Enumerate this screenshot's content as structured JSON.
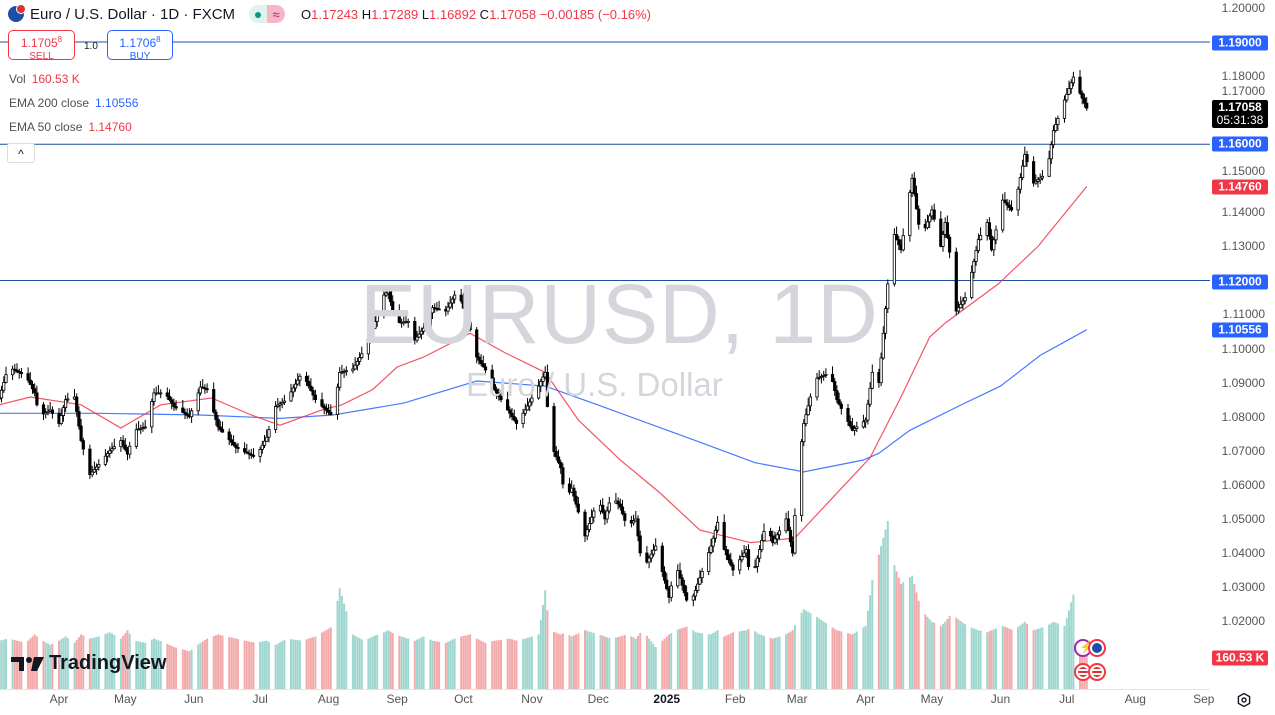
{
  "header": {
    "title": "Euro / U.S. Dollar · 1D · FXCM",
    "market_status_icon": "green-dot",
    "data_icon": "≈",
    "ohlc": {
      "o_label": "O",
      "o": "1.17243",
      "h_label": "H",
      "h": "1.17289",
      "l_label": "L",
      "l": "1.16892",
      "c_label": "C",
      "c": "1.17058",
      "change": "−0.00185 (−0.16%)"
    }
  },
  "trade": {
    "sell_price": "1.1705",
    "sell_sup": "8",
    "sell_label": "SELL",
    "spread": "1.0",
    "buy_price": "1.1706",
    "buy_sup": "8",
    "buy_label": "BUY"
  },
  "legend": {
    "vol_label": "Vol",
    "vol_value": "160.53 K",
    "ema200_label": "EMA 200 close",
    "ema200_value": "1.10556",
    "ema50_label": "EMA 50 close",
    "ema50_value": "1.14760"
  },
  "collapse_icon": "^",
  "watermark": {
    "symbol": "EURUSD, 1D",
    "name": "Euro / U.S. Dollar"
  },
  "logo": "TradingView",
  "colors": {
    "up_volume": "#9fd6cf",
    "down_volume": "#f2aaaa",
    "ema200": "#2962ff",
    "ema50": "#f23645",
    "hline": "#1f4e9c",
    "badge_blue": "#2962ff",
    "badge_red": "#f23645",
    "last_price_bg": "#000000"
  },
  "price_axis": {
    "ticks": [
      "1.20000",
      "1.18000",
      "1.17000",
      "1.15000",
      "1.14000",
      "1.13000",
      "1.11000",
      "1.10000",
      "1.09000",
      "1.08000",
      "1.07000",
      "1.06000",
      "1.05000",
      "1.04000",
      "1.03000",
      "1.02000"
    ],
    "last_price": "1.17058",
    "countdown": "05:31:38",
    "ema50_badge": "1.14760",
    "ema200_badge": "1.10556",
    "hline_badges": [
      "1.19000",
      "1.16000",
      "1.12000"
    ],
    "volume_badge": "160.53 K"
  },
  "time_axis": {
    "labels": [
      {
        "text": "Apr",
        "date": "2024-04-01"
      },
      {
        "text": "May",
        "date": "2024-05-01"
      },
      {
        "text": "Jun",
        "date": "2024-06-01"
      },
      {
        "text": "Jul",
        "date": "2024-07-01"
      },
      {
        "text": "Aug",
        "date": "2024-08-01"
      },
      {
        "text": "Sep",
        "date": "2024-09-01"
      },
      {
        "text": "Oct",
        "date": "2024-10-01"
      },
      {
        "text": "Nov",
        "date": "2024-11-01"
      },
      {
        "text": "Dec",
        "date": "2024-12-01"
      },
      {
        "text": "2025",
        "date": "2025-01-01",
        "year": true
      },
      {
        "text": "Feb",
        "date": "2025-02-01"
      },
      {
        "text": "Mar",
        "date": "2025-03-01"
      },
      {
        "text": "Apr",
        "date": "2025-04-01"
      },
      {
        "text": "May",
        "date": "2025-05-01"
      },
      {
        "text": "Jun",
        "date": "2025-06-01"
      },
      {
        "text": "Jul",
        "date": "2025-07-01"
      },
      {
        "text": "Aug",
        "date": "2025-08-01"
      },
      {
        "text": "Sep",
        "date": "2025-09-01"
      }
    ],
    "settings_icon": "gear-icon"
  },
  "chart_data": {
    "type": "candlestick",
    "symbol": "EURUSD",
    "interval": "1D",
    "ylim": [
      1.015,
      1.2
    ],
    "grid": false,
    "horizontal_lines": [
      1.19,
      1.16,
      1.12
    ],
    "close_path_columns": [
      "date",
      "close",
      "volume_k"
    ],
    "close_path": [
      [
        "2024-03-05",
        1.0855,
        230
      ],
      [
        "2024-03-09",
        1.0946,
        240
      ],
      [
        "2024-03-17",
        1.092,
        220
      ],
      [
        "2024-03-21",
        1.087,
        260
      ],
      [
        "2024-03-23",
        1.08,
        240
      ],
      [
        "2024-03-28",
        1.082,
        210
      ],
      [
        "2024-04-01",
        1.078,
        230
      ],
      [
        "2024-04-04",
        1.085,
        250
      ],
      [
        "2024-04-08",
        1.0858,
        220
      ],
      [
        "2024-04-11",
        1.073,
        260
      ],
      [
        "2024-04-15",
        1.063,
        240
      ],
      [
        "2024-04-19",
        1.066,
        250
      ],
      [
        "2024-04-24",
        1.07,
        270
      ],
      [
        "2024-04-29",
        1.073,
        240
      ],
      [
        "2024-05-02",
        1.069,
        280
      ],
      [
        "2024-05-05",
        1.076,
        230
      ],
      [
        "2024-05-10",
        1.077,
        220
      ],
      [
        "2024-05-14",
        1.087,
        240
      ],
      [
        "2024-05-19",
        1.087,
        220
      ],
      [
        "2024-05-23",
        1.083,
        200
      ],
      [
        "2024-05-30",
        1.08,
        180
      ],
      [
        "2024-06-04",
        1.0887,
        220
      ],
      [
        "2024-06-07",
        1.088,
        240
      ],
      [
        "2024-06-12",
        1.077,
        260
      ],
      [
        "2024-06-20",
        1.071,
        240
      ],
      [
        "2024-06-29",
        1.068,
        220
      ],
      [
        "2024-07-04",
        1.074,
        230
      ],
      [
        "2024-07-08",
        1.083,
        210
      ],
      [
        "2024-07-13",
        1.085,
        240
      ],
      [
        "2024-07-20",
        1.093,
        230
      ],
      [
        "2024-07-26",
        1.085,
        250
      ],
      [
        "2024-08-03",
        1.08,
        300
      ],
      [
        "2024-08-06",
        1.093,
        480
      ],
      [
        "2024-08-12",
        1.094,
        260
      ],
      [
        "2024-08-17",
        1.0996,
        230
      ],
      [
        "2024-08-21",
        1.106,
        250
      ],
      [
        "2024-08-26",
        1.1157,
        270
      ],
      [
        "2024-08-28",
        1.117,
        280
      ],
      [
        "2024-08-31",
        1.1075,
        260
      ],
      [
        "2024-09-06",
        1.108,
        240
      ],
      [
        "2024-09-09",
        1.1025,
        230
      ],
      [
        "2024-09-13",
        1.106,
        250
      ],
      [
        "2024-09-17",
        1.112,
        230
      ],
      [
        "2024-09-23",
        1.111,
        220
      ],
      [
        "2024-09-27",
        1.1157,
        240
      ],
      [
        "2024-09-30",
        1.114,
        250
      ],
      [
        "2024-10-04",
        1.1055,
        260
      ],
      [
        "2024-10-07",
        1.0975,
        240
      ],
      [
        "2024-10-11",
        1.0937,
        220
      ],
      [
        "2024-10-15",
        1.088,
        230
      ],
      [
        "2024-10-22",
        1.081,
        240
      ],
      [
        "2024-10-25",
        1.078,
        230
      ],
      [
        "2024-10-29",
        1.082,
        240
      ],
      [
        "2024-11-04",
        1.089,
        260
      ],
      [
        "2024-11-07",
        1.093,
        470
      ],
      [
        "2024-11-09",
        1.073,
        280
      ],
      [
        "2024-11-14",
        1.065,
        260
      ],
      [
        "2024-11-16",
        1.0555,
        270
      ],
      [
        "2024-11-19",
        1.059,
        250
      ],
      [
        "2024-11-25",
        1.045,
        280
      ],
      [
        "2024-12-01",
        1.056,
        260
      ],
      [
        "2024-12-04",
        1.05,
        250
      ],
      [
        "2024-12-07",
        1.057,
        240
      ],
      [
        "2024-12-11",
        1.0535,
        250
      ],
      [
        "2024-12-14",
        1.0476,
        260
      ],
      [
        "2024-12-18",
        1.05,
        240
      ],
      [
        "2024-12-21",
        1.035,
        280
      ],
      [
        "2024-12-27",
        1.042,
        200
      ],
      [
        "2025-01-02",
        1.027,
        260
      ],
      [
        "2025-01-05",
        1.037,
        280
      ],
      [
        "2025-01-11",
        1.024,
        300
      ],
      [
        "2025-01-14",
        1.029,
        270
      ],
      [
        "2025-01-21",
        1.042,
        260
      ],
      [
        "2025-01-24",
        1.049,
        280
      ],
      [
        "2025-01-27",
        1.041,
        250
      ],
      [
        "2025-01-31",
        1.035,
        270
      ],
      [
        "2025-02-06",
        1.041,
        280
      ],
      [
        "2025-02-08",
        1.031,
        290
      ],
      [
        "2025-02-12",
        1.041,
        260
      ],
      [
        "2025-02-15",
        1.049,
        250
      ],
      [
        "2025-02-18",
        1.043,
        240
      ],
      [
        "2025-02-24",
        1.05,
        260
      ],
      [
        "2025-02-27",
        1.04,
        280
      ],
      [
        "2025-03-01",
        1.062,
        330
      ],
      [
        "2025-03-04",
        1.078,
        380
      ],
      [
        "2025-03-09",
        1.091,
        350
      ],
      [
        "2025-03-16",
        1.093,
        300
      ],
      [
        "2025-03-19",
        1.085,
        280
      ],
      [
        "2025-03-26",
        1.076,
        260
      ],
      [
        "2025-04-01",
        1.079,
        300
      ],
      [
        "2025-04-04",
        1.093,
        520
      ],
      [
        "2025-04-07",
        1.09,
        640
      ],
      [
        "2025-04-11",
        1.119,
        800
      ],
      [
        "2025-04-13",
        1.135,
        620
      ],
      [
        "2025-04-17",
        1.129,
        500
      ],
      [
        "2025-04-22",
        1.15,
        540
      ],
      [
        "2025-04-26",
        1.132,
        380
      ],
      [
        "2025-05-01",
        1.1407,
        320
      ],
      [
        "2025-05-05",
        1.13,
        300
      ],
      [
        "2025-05-07",
        1.137,
        320
      ],
      [
        "2025-05-10",
        1.124,
        360
      ],
      [
        "2025-05-12",
        1.111,
        340
      ],
      [
        "2025-05-17",
        1.116,
        300
      ],
      [
        "2025-05-22",
        1.132,
        280
      ],
      [
        "2025-05-26",
        1.137,
        270
      ],
      [
        "2025-05-28",
        1.129,
        280
      ],
      [
        "2025-06-02",
        1.1436,
        300
      ],
      [
        "2025-06-07",
        1.14,
        280
      ],
      [
        "2025-06-12",
        1.157,
        320
      ],
      [
        "2025-06-16",
        1.1486,
        280
      ],
      [
        "2025-06-22",
        1.1516,
        300
      ],
      [
        "2025-06-25",
        1.164,
        320
      ],
      [
        "2025-06-30",
        1.173,
        300
      ],
      [
        "2025-07-04",
        1.1797,
        450
      ],
      [
        "2025-07-07",
        1.175,
        200
      ],
      [
        "2025-07-10",
        1.17058,
        160.53
      ]
    ],
    "ema200": [
      [
        "2024-03-05",
        1.081
      ],
      [
        "2024-04-19",
        1.081
      ],
      [
        "2024-06-04",
        1.0805
      ],
      [
        "2024-07-10",
        1.0795
      ],
      [
        "2024-08-03",
        1.0805
      ],
      [
        "2024-09-04",
        1.084
      ],
      [
        "2024-10-07",
        1.0905
      ],
      [
        "2024-11-07",
        1.089
      ],
      [
        "2024-12-01",
        1.0834
      ],
      [
        "2025-01-14",
        1.073
      ],
      [
        "2025-02-10",
        1.0665
      ],
      [
        "2025-03-04",
        1.0638
      ],
      [
        "2025-03-31",
        1.0673
      ],
      [
        "2025-04-07",
        1.0693
      ],
      [
        "2025-04-21",
        1.076
      ],
      [
        "2025-05-14",
        1.0834
      ],
      [
        "2025-06-01",
        1.089
      ],
      [
        "2025-06-19",
        1.098
      ],
      [
        "2025-07-10",
        1.10556
      ]
    ],
    "ema50": [
      [
        "2024-03-05",
        1.0835
      ],
      [
        "2024-03-19",
        1.0858
      ],
      [
        "2024-04-11",
        1.0835
      ],
      [
        "2024-04-29",
        1.0767
      ],
      [
        "2024-05-17",
        1.0835
      ],
      [
        "2024-06-09",
        1.0855
      ],
      [
        "2024-06-27",
        1.0805
      ],
      [
        "2024-07-10",
        1.0775
      ],
      [
        "2024-07-29",
        1.082
      ],
      [
        "2024-08-07",
        1.0835
      ],
      [
        "2024-08-21",
        1.088
      ],
      [
        "2024-09-01",
        1.0946
      ],
      [
        "2024-09-13",
        1.0975
      ],
      [
        "2024-10-04",
        1.1045
      ],
      [
        "2024-10-20",
        1.0987
      ],
      [
        "2024-11-07",
        1.093
      ],
      [
        "2024-11-22",
        1.079
      ],
      [
        "2024-12-11",
        1.0673
      ],
      [
        "2024-12-29",
        1.0576
      ],
      [
        "2025-01-16",
        1.0467
      ],
      [
        "2025-02-08",
        1.043
      ],
      [
        "2025-02-28",
        1.0444
      ],
      [
        "2025-03-16",
        1.0555
      ],
      [
        "2025-04-03",
        1.068
      ],
      [
        "2025-04-17",
        1.0858
      ],
      [
        "2025-04-30",
        1.1034
      ],
      [
        "2025-05-07",
        1.1075
      ],
      [
        "2025-05-31",
        1.119
      ],
      [
        "2025-06-18",
        1.13
      ],
      [
        "2025-07-10",
        1.1476
      ]
    ]
  }
}
